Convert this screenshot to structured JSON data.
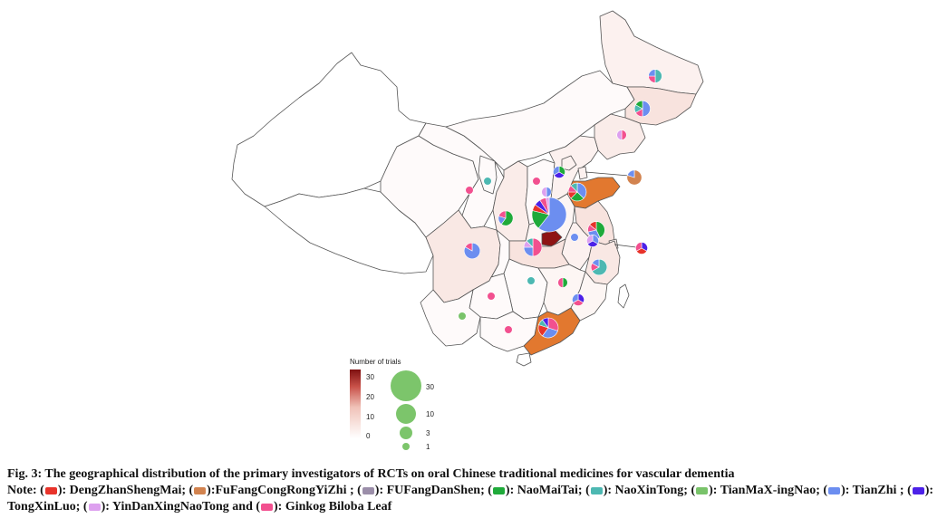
{
  "legend": {
    "title": "Number of trials",
    "color_scale_ticks": [
      "30",
      "20",
      "10",
      "0"
    ],
    "size_scale_ticks": [
      "30",
      "10",
      "3",
      "1"
    ]
  },
  "caption": {
    "figure_title": "Fig. 3: The geographical distribution of the primary investigators of RCTs on oral Chinese traditional medicines for vascular dementia",
    "note_prefix": "Note: (",
    "items": [
      {
        "text": "): DengZhanShengMai; (",
        "color": "#E8332A"
      },
      {
        "text": "):FuFangCongRongYiZhi ; (",
        "color": "#D2834F"
      },
      {
        "text": "): FUFangDanShen; (",
        "color": "#9B8EA9"
      },
      {
        "text": "): NaoMaiTai; (",
        "color": "#1FAA3A"
      },
      {
        "text": "): NaoXinTong; (",
        "color": "#4DB8B2"
      },
      {
        "text": "): TianMaX-ingNao; (",
        "color": "#79C36A"
      },
      {
        "text": "): TianZhi ; (",
        "color": "#6C8EF0"
      },
      {
        "text": "): TongXinLuo; (",
        "color": "#4C21E8"
      },
      {
        "text": "): YinDanXingNaoTong and (",
        "color": "#DDA0EF"
      },
      {
        "text": "): Ginkog Biloba Leaf",
        "color": "#F2508F"
      }
    ]
  },
  "map_data": {
    "medicine_colors": {
      "DengZhanShengMai": "#E8332A",
      "FuFangCongRongYiZhi": "#D2834F",
      "FUFangDanShen": "#9B8EA9",
      "NaoMaiTai": "#1FAA3A",
      "NaoXinTong": "#4DB8B2",
      "TianMaXingNao": "#79C36A",
      "TianZhi": "#6C8EF0",
      "TongXinLuo": "#4C21E8",
      "YinDanXingNaoTong": "#DDA0EF",
      "Ginkog Biloba Leaf": "#F2508F"
    },
    "color_scale": {
      "min": 0,
      "max": 33,
      "low_color": "#FFFFFF",
      "mid_color": "#F2C9C0",
      "high_color": "#7E1010"
    },
    "provinces": [
      {
        "id": "heilongjiang",
        "trials": 3
      },
      {
        "id": "jilin",
        "trials": 6
      },
      {
        "id": "liaoning",
        "trials": 4
      },
      {
        "id": "inner-mongolia",
        "trials": 1
      },
      {
        "id": "beijing",
        "trials": 3
      },
      {
        "id": "tianjin",
        "trials": 3
      },
      {
        "id": "hebei",
        "trials": 3
      },
      {
        "id": "shanxi",
        "trials": 1
      },
      {
        "id": "shandong",
        "trials": 16
      },
      {
        "id": "henan",
        "trials": 2
      },
      {
        "id": "shaanxi",
        "trials": 4
      },
      {
        "id": "ningxia",
        "trials": 1
      },
      {
        "id": "gansu",
        "trials": 1
      },
      {
        "id": "qinghai",
        "trials": 1
      },
      {
        "id": "xinjiang",
        "trials": 0
      },
      {
        "id": "tibet",
        "trials": 0
      },
      {
        "id": "sichuan",
        "trials": 5
      },
      {
        "id": "chongqing",
        "trials": 1
      },
      {
        "id": "hubei",
        "trials": 6
      },
      {
        "id": "anhui",
        "trials": 3
      },
      {
        "id": "jiangsu",
        "trials": 6
      },
      {
        "id": "shanghai",
        "trials": 3
      },
      {
        "id": "zhejiang",
        "trials": 5
      },
      {
        "id": "jiangxi",
        "trials": 2
      },
      {
        "id": "hunan",
        "trials": 1
      },
      {
        "id": "guizhou",
        "trials": 1
      },
      {
        "id": "yunnan",
        "trials": 1
      },
      {
        "id": "guangxi",
        "trials": 1
      },
      {
        "id": "guangdong",
        "trials": 15
      },
      {
        "id": "fujian",
        "trials": 2
      },
      {
        "id": "hainan",
        "trials": 0
      },
      {
        "id": "henan-hub",
        "trials": 33
      }
    ],
    "pies": [
      {
        "id": "heilongjiang",
        "total": 4,
        "slices": [
          {
            "m": "NaoXinTong",
            "v": 2
          },
          {
            "m": "Ginkog Biloba Leaf",
            "v": 1
          },
          {
            "m": "TianZhi",
            "v": 1
          }
        ]
      },
      {
        "id": "jilin",
        "total": 6,
        "slices": [
          {
            "m": "TianZhi",
            "v": 3
          },
          {
            "m": "Ginkog Biloba Leaf",
            "v": 1
          },
          {
            "m": "NaoXinTong",
            "v": 1
          },
          {
            "m": "NaoMaiTai",
            "v": 1
          }
        ]
      },
      {
        "id": "liaoning",
        "total": 2,
        "slices": [
          {
            "m": "Ginkog Biloba Leaf",
            "v": 1
          },
          {
            "m": "YinDanXingNaoTong",
            "v": 1
          }
        ]
      },
      {
        "id": "tianjin-callout",
        "total": 5,
        "slices": [
          {
            "m": "FuFangCongRongYiZhi",
            "v": 4
          },
          {
            "m": "TianZhi",
            "v": 1
          }
        ]
      },
      {
        "id": "beijing",
        "total": 3,
        "slices": [
          {
            "m": "NaoMaiTai",
            "v": 1
          },
          {
            "m": "TongXinLuo",
            "v": 1
          },
          {
            "m": "TianZhi",
            "v": 1
          }
        ]
      },
      {
        "id": "shanxi",
        "total": 1,
        "slices": [
          {
            "m": "Ginkog Biloba Leaf",
            "v": 1
          }
        ]
      },
      {
        "id": "ningxia",
        "total": 1,
        "slices": [
          {
            "m": "NaoXinTong",
            "v": 1
          }
        ]
      },
      {
        "id": "gansu",
        "total": 1,
        "slices": [
          {
            "m": "Ginkog Biloba Leaf",
            "v": 1
          }
        ]
      },
      {
        "id": "hebei",
        "total": 2,
        "slices": [
          {
            "m": "TianZhi",
            "v": 1
          },
          {
            "m": "YinDanXingNaoTong",
            "v": 1
          }
        ]
      },
      {
        "id": "shandong",
        "total": 8,
        "slices": [
          {
            "m": "TianZhi",
            "v": 3
          },
          {
            "m": "NaoMaiTai",
            "v": 2
          },
          {
            "m": "DengZhanShengMai",
            "v": 1
          },
          {
            "m": "Ginkog Biloba Leaf",
            "v": 1
          },
          {
            "m": "NaoXinTong",
            "v": 1
          }
        ]
      },
      {
        "id": "henan",
        "total": 33,
        "slices": [
          {
            "m": "TianZhi",
            "v": 20
          },
          {
            "m": "NaoMaiTai",
            "v": 6
          },
          {
            "m": "DengZhanShengMai",
            "v": 2
          },
          {
            "m": "TongXinLuo",
            "v": 2
          },
          {
            "m": "Ginkog Biloba Leaf",
            "v": 2
          },
          {
            "m": "YinDanXingNaoTong",
            "v": 1
          }
        ]
      },
      {
        "id": "shaanxi",
        "total": 5,
        "slices": [
          {
            "m": "NaoMaiTai",
            "v": 3
          },
          {
            "m": "TianZhi",
            "v": 1
          },
          {
            "m": "Ginkog Biloba Leaf",
            "v": 1
          }
        ]
      },
      {
        "id": "jiangsu",
        "total": 7,
        "slices": [
          {
            "m": "NaoMaiTai",
            "v": 3
          },
          {
            "m": "TianZhi",
            "v": 2
          },
          {
            "m": "Ginkog Biloba Leaf",
            "v": 1
          },
          {
            "m": "DengZhanShengMai",
            "v": 1
          }
        ]
      },
      {
        "id": "anhui-a",
        "total": 3,
        "slices": [
          {
            "m": "TianZhi",
            "v": 1
          },
          {
            "m": "TongXinLuo",
            "v": 1
          },
          {
            "m": "YinDanXingNaoTong",
            "v": 1
          }
        ]
      },
      {
        "id": "anhui-b",
        "total": 1,
        "slices": [
          {
            "m": "TianZhi",
            "v": 1
          }
        ]
      },
      {
        "id": "shanghai-callout",
        "total": 3,
        "slices": [
          {
            "m": "TongXinLuo",
            "v": 1
          },
          {
            "m": "DengZhanShengMai",
            "v": 1
          },
          {
            "m": "Ginkog Biloba Leaf",
            "v": 1
          }
        ]
      },
      {
        "id": "hubei",
        "total": 8,
        "slices": [
          {
            "m": "Ginkog Biloba Leaf",
            "v": 4
          },
          {
            "m": "TianZhi",
            "v": 2
          },
          {
            "m": "YinDanXingNaoTong",
            "v": 1
          },
          {
            "m": "NaoXinTong",
            "v": 1
          }
        ]
      },
      {
        "id": "zhejiang",
        "total": 6,
        "slices": [
          {
            "m": "NaoXinTong",
            "v": 4
          },
          {
            "m": "Ginkog Biloba Leaf",
            "v": 1
          },
          {
            "m": "TianZhi",
            "v": 1
          }
        ]
      },
      {
        "id": "sichuan",
        "total": 6,
        "slices": [
          {
            "m": "TianZhi",
            "v": 5
          },
          {
            "m": "Ginkog Biloba Leaf",
            "v": 1
          }
        ]
      },
      {
        "id": "jiangxi",
        "total": 2,
        "slices": [
          {
            "m": "NaoMaiTai",
            "v": 1
          },
          {
            "m": "Ginkog Biloba Leaf",
            "v": 1
          }
        ]
      },
      {
        "id": "hunan",
        "total": 1,
        "slices": [
          {
            "m": "NaoXinTong",
            "v": 1
          }
        ]
      },
      {
        "id": "fujian",
        "total": 3,
        "slices": [
          {
            "m": "TongXinLuo",
            "v": 1
          },
          {
            "m": "Ginkog Biloba Leaf",
            "v": 1
          },
          {
            "m": "TianZhi",
            "v": 1
          }
        ]
      },
      {
        "id": "guizhou",
        "total": 1,
        "slices": [
          {
            "m": "Ginkog Biloba Leaf",
            "v": 1
          }
        ]
      },
      {
        "id": "yunnan",
        "total": 1,
        "slices": [
          {
            "m": "TianMaXingNao",
            "v": 1
          }
        ]
      },
      {
        "id": "guangxi",
        "total": 1,
        "slices": [
          {
            "m": "Ginkog Biloba Leaf",
            "v": 1
          }
        ]
      },
      {
        "id": "guangdong",
        "total": 10,
        "slices": [
          {
            "m": "Ginkog Biloba Leaf",
            "v": 3
          },
          {
            "m": "TianZhi",
            "v": 3
          },
          {
            "m": "DengZhanShengMai",
            "v": 2
          },
          {
            "m": "NaoXinTong",
            "v": 1
          },
          {
            "m": "TongXinLuo",
            "v": 1
          }
        ]
      }
    ]
  }
}
